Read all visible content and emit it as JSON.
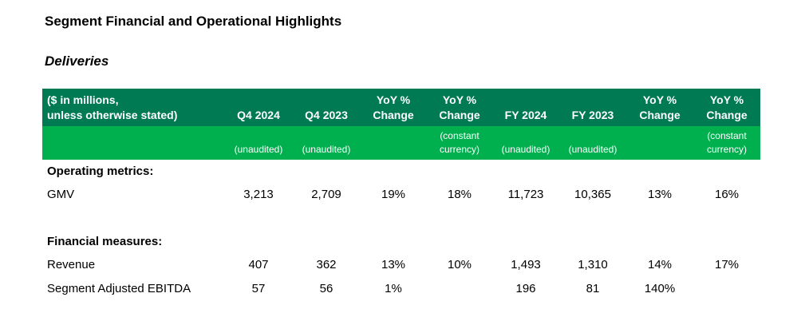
{
  "title": "Segment Financial and Operational Highlights",
  "section": "Deliveries",
  "header": {
    "label_line1": "($ in millions,",
    "label_line2": "unless otherwise stated)",
    "columns": [
      {
        "line1": "",
        "line2": "Q4 2024",
        "sub1": "",
        "sub2": "(unaudited)"
      },
      {
        "line1": "",
        "line2": "Q4 2023",
        "sub1": "",
        "sub2": "(unaudited)"
      },
      {
        "line1": "YoY %",
        "line2": "Change",
        "sub1": "",
        "sub2": ""
      },
      {
        "line1": "YoY %",
        "line2": "Change",
        "sub1": "(constant",
        "sub2": "currency)"
      },
      {
        "line1": "",
        "line2": "FY 2024",
        "sub1": "",
        "sub2": "(unaudited)"
      },
      {
        "line1": "",
        "line2": "FY 2023",
        "sub1": "",
        "sub2": "(unaudited)"
      },
      {
        "line1": "YoY %",
        "line2": "Change",
        "sub1": "",
        "sub2": ""
      },
      {
        "line1": "YoY %",
        "line2": "Change",
        "sub1": "(constant",
        "sub2": "currency)"
      }
    ]
  },
  "sections": [
    {
      "heading": "Operating metrics:",
      "rows": [
        {
          "label": "GMV",
          "values": [
            "3,213",
            "2,709",
            "19%",
            "18%",
            "11,723",
            "10,365",
            "13%",
            "16%"
          ]
        }
      ]
    },
    {
      "heading": "Financial measures:",
      "rows": [
        {
          "label": "Revenue",
          "values": [
            "407",
            "362",
            "13%",
            "10%",
            "1,493",
            "1,310",
            "14%",
            "17%"
          ]
        },
        {
          "label": "Segment Adjusted EBITDA",
          "values": [
            "57",
            "56",
            "1%",
            "",
            "196",
            "81",
            "140%",
            ""
          ]
        }
      ]
    }
  ],
  "colors": {
    "header_dark": "#007a53",
    "header_light": "#00b04f"
  }
}
